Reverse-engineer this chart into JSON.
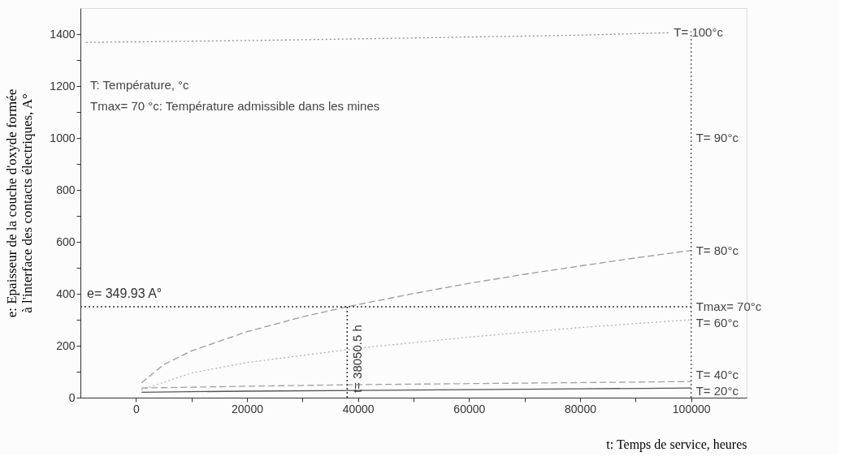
{
  "chart_data": {
    "type": "line",
    "xlabel": "t: Temps de service, heures",
    "ylabel": "e: Epaisseur de la couche d'oxyde formée\nà l'interface des contacts électriques, A°",
    "xlim": [
      -10000,
      110000
    ],
    "ylim": [
      0,
      1500
    ],
    "xticks": [
      0,
      {
        "value": 10000,
        "label": null
      },
      20000,
      {
        "value": 30000,
        "label": null
      },
      40000,
      {
        "value": 50000,
        "label": null
      },
      60000,
      {
        "value": 70000,
        "label": null
      },
      80000,
      {
        "value": 90000,
        "label": null
      },
      100000
    ],
    "yticks": [
      0,
      {
        "value": 100,
        "label": null
      },
      200,
      {
        "value": 300,
        "label": null
      },
      400,
      {
        "value": 500,
        "label": null
      },
      600,
      {
        "value": 700,
        "label": null
      },
      800,
      {
        "value": 900,
        "label": null
      },
      1000,
      {
        "value": 1100,
        "label": null
      },
      1200,
      {
        "value": 1300,
        "label": null
      },
      1400
    ],
    "grid": false,
    "legend": false,
    "marker": "none",
    "series": [
      {
        "name": "T= 100°c",
        "color": "#8a8a8a",
        "line_style": "dotted",
        "x": [
          -9000,
          20000,
          50000,
          80000,
          96000
        ],
        "values": [
          1368,
          1375,
          1385,
          1396,
          1405
        ]
      },
      {
        "name": "T= 80°c",
        "color": "#9a9a9a",
        "line_style": "dashed",
        "x": [
          1000,
          5000,
          10000,
          20000,
          30000,
          38050.5,
          50000,
          60000,
          70000,
          80000,
          90000,
          100000
        ],
        "values": [
          57,
          127,
          180,
          254,
          311,
          350,
          401,
          440,
          475,
          507,
          538,
          567
        ]
      },
      {
        "name": "T= 60°c",
        "color": "#b0b0b0",
        "line_style": "dotted",
        "x": [
          1000,
          10000,
          20000,
          40000,
          60000,
          80000,
          100000
        ],
        "values": [
          30,
          95,
          135,
          190,
          233,
          270,
          300
        ]
      },
      {
        "name": "T= 40°c",
        "color": "#a0a0a0",
        "line_style": "dashed",
        "x": [
          1000,
          20000,
          40000,
          60000,
          80000,
          100000
        ],
        "values": [
          37,
          44,
          50,
          54,
          58,
          62
        ]
      },
      {
        "name": "T= 20°c",
        "color": "#555555",
        "line_style": "solid",
        "x": [
          1000,
          20000,
          40000,
          60000,
          80000,
          100000
        ],
        "values": [
          21,
          25,
          28,
          31,
          34,
          37
        ]
      }
    ],
    "ref_lines": [
      {
        "axis": "y",
        "value": 349.93,
        "label": "e= 349.93 A°",
        "color": "#333333",
        "line_style": "dotted"
      },
      {
        "axis": "x",
        "value": 38050.5,
        "label": "t= 38050.5 h",
        "color": "#333333",
        "line_style": "dotted"
      },
      {
        "axis": "x",
        "value": 100000,
        "color": "#666666",
        "line_style": "dotted"
      }
    ],
    "annotations": [
      "T: Température, °c",
      "Tmax= 70 °c: Température admissible dans les mines",
      {
        "text": "T= 90°c",
        "x": 100000,
        "y": 1000
      },
      {
        "text": "Tmax= 70°c",
        "x": 100000,
        "y": 349.93
      }
    ]
  }
}
